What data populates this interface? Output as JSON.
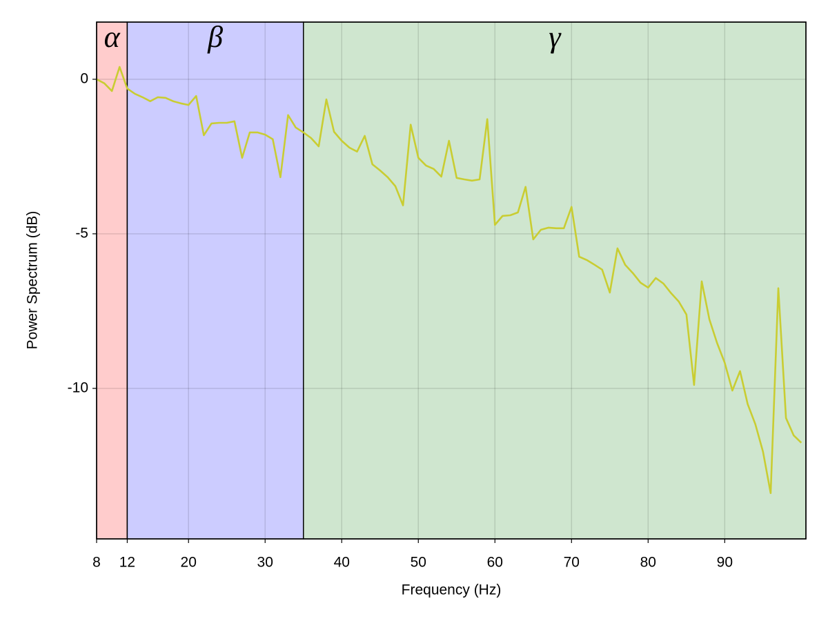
{
  "chart_data": {
    "type": "line",
    "xlabel": "Frequency (Hz)",
    "ylabel": "Power Spectrum (dB)",
    "x": [
      8,
      9,
      10,
      11,
      12,
      13,
      14,
      15,
      16,
      17,
      18,
      19,
      20,
      21,
      22,
      23,
      24,
      25,
      26,
      27,
      28,
      29,
      30,
      31,
      32,
      33,
      34,
      35,
      36,
      37,
      38,
      39,
      40,
      41,
      42,
      43,
      44,
      45,
      46,
      47,
      48,
      49,
      50,
      51,
      52,
      53,
      54,
      55,
      56,
      57,
      58,
      59,
      60,
      61,
      62,
      63,
      64,
      65,
      66,
      67,
      68,
      69,
      70,
      71,
      72,
      73,
      74,
      75,
      76,
      77,
      78,
      79,
      80,
      81,
      82,
      83,
      84,
      85,
      86,
      87,
      88,
      89,
      90,
      91,
      92,
      93,
      94,
      95,
      96,
      97,
      98,
      99,
      100
    ],
    "values": [
      0,
      -0.13,
      -0.38,
      0.4,
      -0.3,
      -0.47,
      -0.58,
      -0.71,
      -0.58,
      -0.6,
      -0.71,
      -0.78,
      -0.83,
      -0.54,
      -1.81,
      -1.43,
      -1.41,
      -1.41,
      -1.36,
      -2.54,
      -1.72,
      -1.72,
      -1.79,
      -1.94,
      -3.17,
      -1.16,
      -1.56,
      -1.72,
      -1.9,
      -2.17,
      -0.65,
      -1.7,
      -1.99,
      -2.21,
      -2.34,
      -1.83,
      -2.75,
      -2.95,
      -3.17,
      -3.46,
      -4.08,
      -1.47,
      -2.54,
      -2.79,
      -2.9,
      -3.15,
      -1.99,
      -3.19,
      -3.24,
      -3.28,
      -3.24,
      -1.29,
      -4.71,
      -4.42,
      -4.4,
      -4.31,
      -3.48,
      -5.18,
      -4.87,
      -4.8,
      -4.82,
      -4.82,
      -4.13,
      -5.74,
      -5.85,
      -6.0,
      -6.16,
      -6.9,
      -5.47,
      -6.0,
      -6.27,
      -6.58,
      -6.74,
      -6.43,
      -6.61,
      -6.92,
      -7.19,
      -7.61,
      -9.89,
      -6.54,
      -7.77,
      -8.53,
      -9.17,
      -10.07,
      -9.44,
      -10.51,
      -11.16,
      -12.05,
      -13.39,
      -6.76,
      -10.96,
      -11.52,
      -11.76
    ],
    "color": "#c9cd32",
    "bands": [
      {
        "label": "α",
        "start": 8,
        "end": 12,
        "color": "#ffcccc"
      },
      {
        "label": "β",
        "start": 12,
        "end": 35,
        "color": "#ccccff"
      },
      {
        "label": "γ",
        "start": 35,
        "end": 100.6,
        "color": "#cfe6cf"
      }
    ],
    "xlim": [
      8,
      100.6
    ],
    "ylim": [
      -14.87,
      1.85
    ],
    "xticks": [
      8,
      12,
      20,
      30,
      40,
      50,
      60,
      70,
      80,
      90
    ],
    "yticks": [
      -10,
      -5,
      0
    ],
    "grid": true
  }
}
